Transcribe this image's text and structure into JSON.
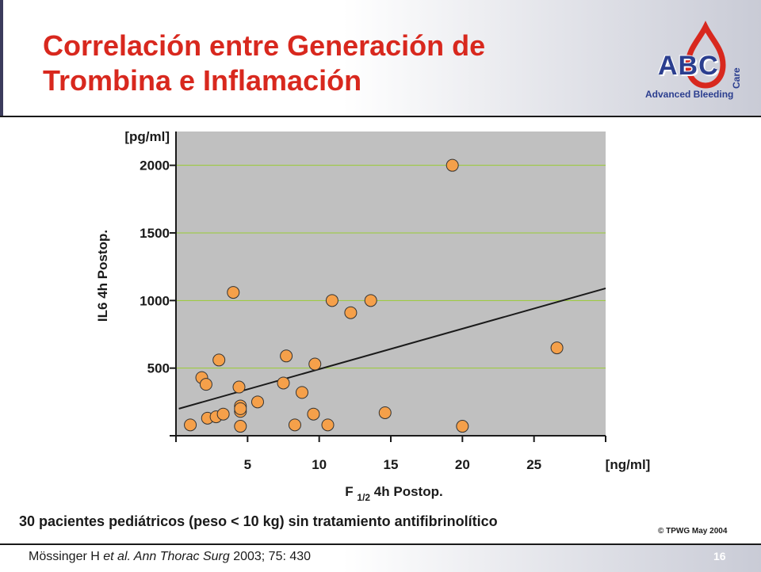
{
  "header": {
    "title": "Correlación entre Generación de Trombina e Inflamación"
  },
  "logo": {
    "abc": "ABC",
    "care": "Care",
    "tagline": "Advanced Bleeding",
    "drop_color": "#d8281e",
    "text_color": "#2b3e8f"
  },
  "chart_data": {
    "type": "scatter",
    "ylabel": "IL6 4h Postop.",
    "y_unit": "[pg/ml]",
    "x_unit": "[ng/ml]",
    "xlabel": {
      "main": "F",
      "sub": "1/2",
      "rest": "4h Postop."
    },
    "xlim": [
      0,
      30
    ],
    "ylim": [
      0,
      2250
    ],
    "x_ticks": [
      5,
      10,
      15,
      20,
      25
    ],
    "y_ticks": [
      500,
      1000,
      1500,
      2000
    ],
    "grid": "horizontal",
    "plot_background": "#c0c0c0",
    "grid_color": "#99cc33",
    "marker_color": "#f5a04a",
    "points": [
      {
        "x": 1.0,
        "y": 80
      },
      {
        "x": 1.8,
        "y": 430
      },
      {
        "x": 2.1,
        "y": 380
      },
      {
        "x": 2.2,
        "y": 130
      },
      {
        "x": 2.8,
        "y": 140
      },
      {
        "x": 3.0,
        "y": 560
      },
      {
        "x": 3.3,
        "y": 160
      },
      {
        "x": 4.0,
        "y": 1060
      },
      {
        "x": 4.4,
        "y": 360
      },
      {
        "x": 4.5,
        "y": 180
      },
      {
        "x": 4.5,
        "y": 220
      },
      {
        "x": 4.5,
        "y": 200
      },
      {
        "x": 4.5,
        "y": 70
      },
      {
        "x": 5.7,
        "y": 250
      },
      {
        "x": 7.5,
        "y": 390
      },
      {
        "x": 7.7,
        "y": 590
      },
      {
        "x": 8.3,
        "y": 80
      },
      {
        "x": 8.8,
        "y": 320
      },
      {
        "x": 9.6,
        "y": 160
      },
      {
        "x": 9.7,
        "y": 530
      },
      {
        "x": 10.6,
        "y": 80
      },
      {
        "x": 10.9,
        "y": 1000
      },
      {
        "x": 12.2,
        "y": 910
      },
      {
        "x": 13.6,
        "y": 1000
      },
      {
        "x": 14.6,
        "y": 170
      },
      {
        "x": 19.3,
        "y": 2000
      },
      {
        "x": 20.0,
        "y": 70
      },
      {
        "x": 26.6,
        "y": 650
      }
    ],
    "trendline": {
      "x": [
        0.2,
        30
      ],
      "y": [
        200,
        1090
      ]
    }
  },
  "note": "30 pacientes pediátricos (peso < 10 kg) sin tratamiento antifibrinolítico",
  "footer": {
    "copyright": "© TPWG May 2004",
    "citation_author": "Mössinger H ",
    "citation_etal": "et al. Ann Thorac Surg",
    "citation_ref": " 2003; 75: 430",
    "page_number": "16"
  }
}
